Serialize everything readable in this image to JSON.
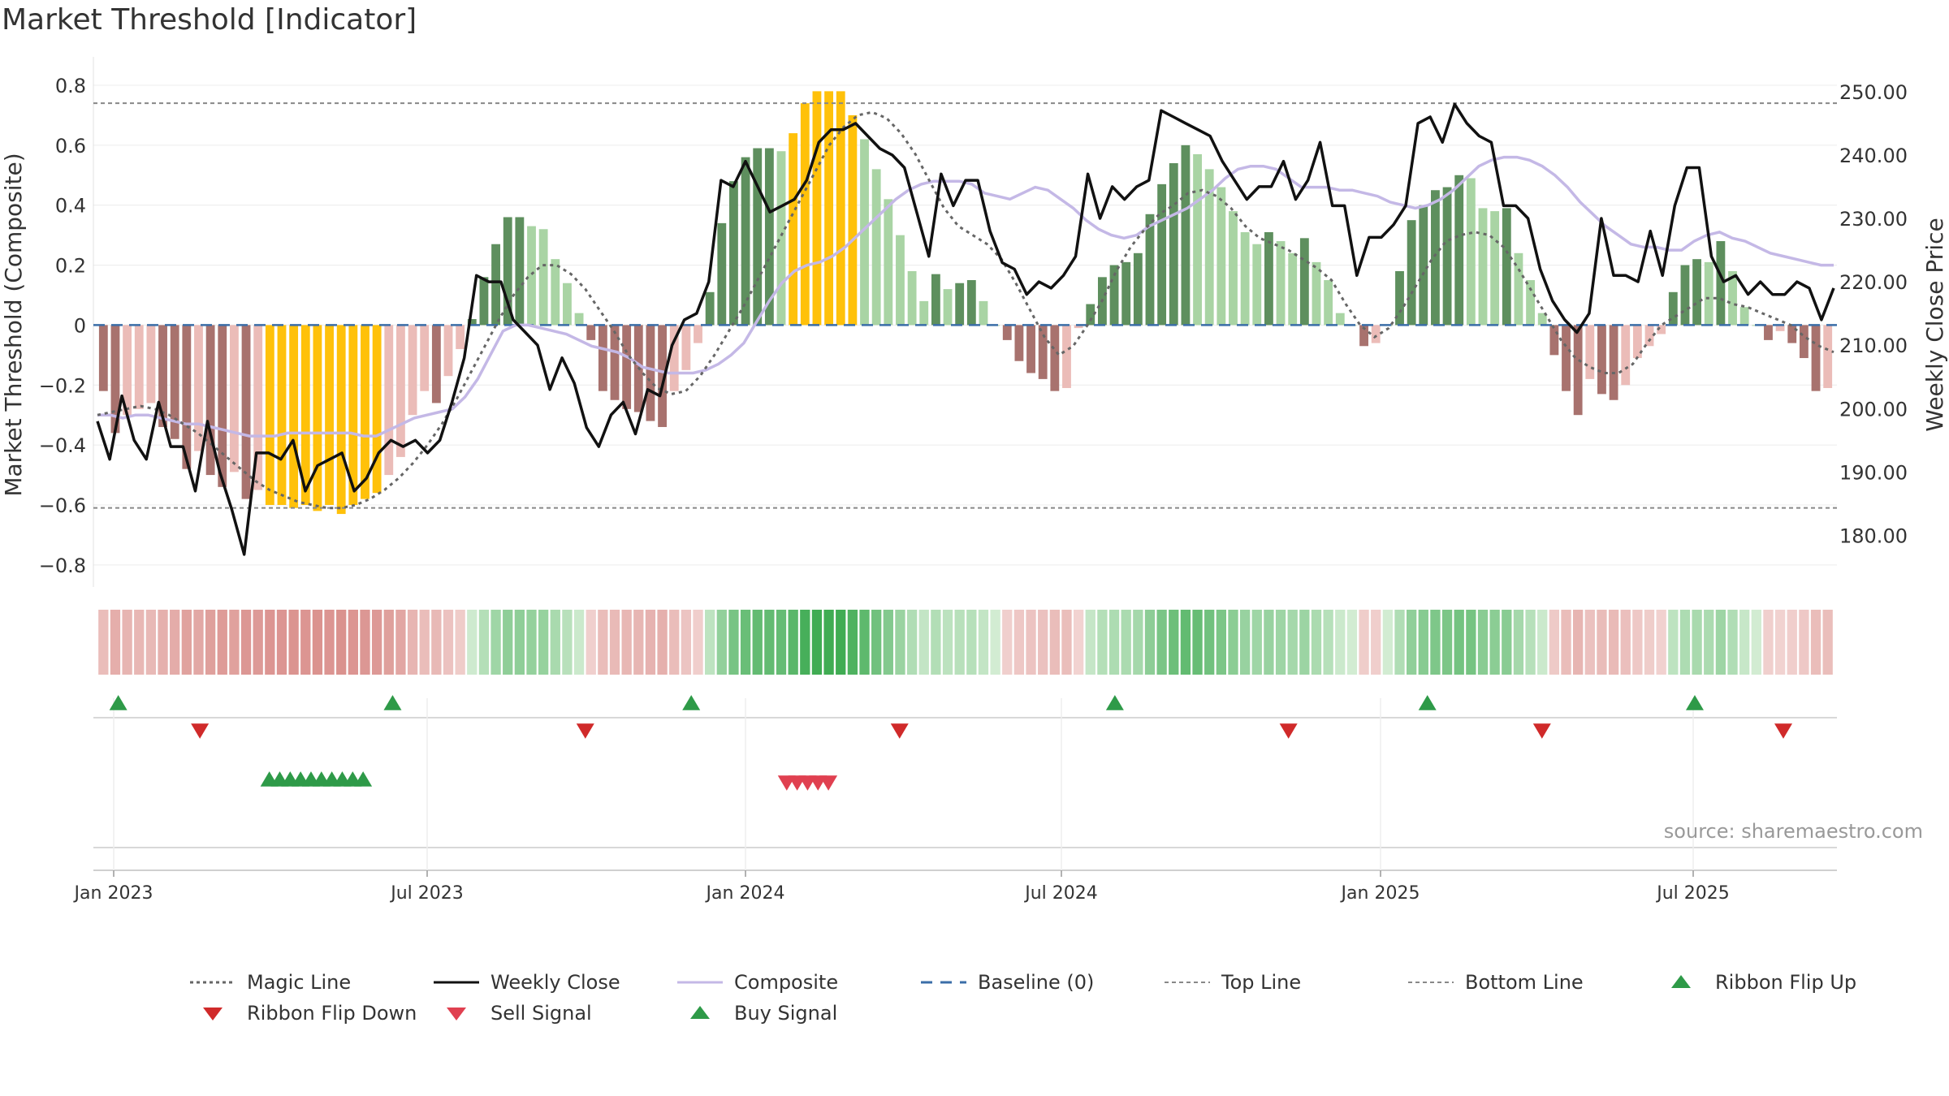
{
  "page": {
    "title": "Market Threshold [Indicator]",
    "source": "source: sharemaestro.com"
  },
  "chart_data": {
    "type": "bar",
    "title": "Market Threshold [Indicator]",
    "ylabel": "Market Threshold (Composite)",
    "y2label": "Weekly Close Price",
    "ylim": [
      -0.86,
      0.8
    ],
    "y2lim": [
      172.5,
      251.0
    ],
    "yticks": [
      "0.8",
      "0.6",
      "0.4",
      "0.2",
      "0",
      "−0.2",
      "−0.4",
      "−0.6",
      "−0.8"
    ],
    "y2ticks": [
      "250.00",
      "240.00",
      "230.00",
      "220.00",
      "210.00",
      "200.00",
      "190.00",
      "180.00"
    ],
    "xticks": [
      "Jan 2023",
      "Jul 2023",
      "Jan 2024",
      "Jul 2024",
      "Jan 2025",
      "Jul 2025"
    ],
    "top_line": 0.74,
    "bottom_line": -0.61,
    "composite_bars": [
      -0.22,
      -0.36,
      -0.3,
      -0.28,
      -0.26,
      -0.34,
      -0.38,
      -0.48,
      -0.42,
      -0.5,
      -0.54,
      -0.49,
      -0.58,
      -0.55,
      -0.6,
      -0.6,
      -0.61,
      -0.6,
      -0.62,
      -0.6,
      -0.63,
      -0.6,
      -0.58,
      -0.56,
      -0.5,
      -0.44,
      -0.3,
      -0.22,
      -0.26,
      -0.17,
      -0.08,
      0.02,
      0.16,
      0.27,
      0.36,
      0.36,
      0.33,
      0.32,
      0.22,
      0.14,
      0.04,
      -0.05,
      -0.22,
      -0.25,
      -0.28,
      -0.29,
      -0.32,
      -0.34,
      -0.22,
      -0.15,
      -0.06,
      0.11,
      0.34,
      0.48,
      0.56,
      0.59,
      0.59,
      0.58,
      0.64,
      0.74,
      0.78,
      0.78,
      0.78,
      0.7,
      0.62,
      0.52,
      0.42,
      0.3,
      0.18,
      0.08,
      0.17,
      0.12,
      0.14,
      0.15,
      0.08,
      0.0,
      -0.05,
      -0.12,
      -0.16,
      -0.18,
      -0.22,
      -0.21,
      -0.01,
      0.07,
      0.16,
      0.2,
      0.21,
      0.24,
      0.37,
      0.47,
      0.54,
      0.6,
      0.57,
      0.52,
      0.46,
      0.38,
      0.31,
      0.27,
      0.31,
      0.28,
      0.24,
      0.29,
      0.21,
      0.15,
      0.04,
      0.0,
      -0.07,
      -0.06,
      0.0,
      0.18,
      0.35,
      0.4,
      0.45,
      0.46,
      0.5,
      0.49,
      0.39,
      0.38,
      0.39,
      0.24,
      0.15,
      0.04,
      -0.1,
      -0.22,
      -0.3,
      -0.18,
      -0.23,
      -0.25,
      -0.2,
      -0.11,
      -0.07,
      -0.03,
      0.11,
      0.2,
      0.22,
      0.21,
      0.28,
      0.18,
      0.06,
      0.0,
      -0.05,
      -0.02,
      -0.06,
      -0.11,
      -0.22,
      -0.21
    ],
    "weekly_close": [
      198,
      192,
      202,
      195,
      192,
      201,
      194,
      194,
      187,
      198,
      190,
      184,
      177,
      193,
      193,
      192,
      195,
      187,
      191,
      192,
      193,
      187,
      189,
      193,
      195,
      194,
      195,
      193,
      195,
      201,
      208,
      221,
      220,
      220,
      214,
      212,
      210,
      203,
      208,
      204,
      197,
      194,
      199,
      201,
      196,
      203,
      202,
      210,
      214,
      215,
      220,
      236,
      235,
      239,
      235,
      231,
      232,
      233,
      236,
      242,
      244,
      244,
      245,
      243,
      241,
      240,
      238,
      231,
      224,
      237,
      232,
      236,
      236,
      228,
      223,
      222,
      218,
      220,
      219,
      221,
      224,
      237,
      230,
      235,
      233,
      235,
      236,
      247,
      246,
      245,
      244,
      243,
      239,
      236,
      233,
      235,
      235,
      239,
      233,
      236,
      242,
      232,
      232,
      221,
      227,
      227,
      229,
      232,
      245,
      246,
      242,
      248,
      245,
      243,
      242,
      232,
      232,
      230,
      222,
      217,
      214,
      212,
      215,
      230,
      221,
      221,
      220,
      228,
      221,
      232,
      238,
      238,
      224,
      220,
      221,
      218,
      220,
      218,
      218,
      220,
      219,
      214,
      219
    ],
    "composite_line": [
      -0.3,
      -0.3,
      -0.31,
      -0.3,
      -0.3,
      -0.31,
      -0.32,
      -0.33,
      -0.33,
      -0.34,
      -0.35,
      -0.36,
      -0.37,
      -0.37,
      -0.37,
      -0.36,
      -0.36,
      -0.36,
      -0.36,
      -0.36,
      -0.36,
      -0.37,
      -0.37,
      -0.35,
      -0.33,
      -0.31,
      -0.3,
      -0.29,
      -0.28,
      -0.24,
      -0.18,
      -0.1,
      -0.02,
      0.0,
      0.0,
      -0.01,
      -0.02,
      -0.03,
      -0.05,
      -0.07,
      -0.08,
      -0.09,
      -0.11,
      -0.14,
      -0.15,
      -0.16,
      -0.16,
      -0.16,
      -0.15,
      -0.13,
      -0.1,
      -0.06,
      0.01,
      0.08,
      0.14,
      0.18,
      0.2,
      0.21,
      0.23,
      0.26,
      0.3,
      0.34,
      0.38,
      0.42,
      0.45,
      0.47,
      0.48,
      0.48,
      0.48,
      0.47,
      0.44,
      0.43,
      0.42,
      0.44,
      0.46,
      0.45,
      0.42,
      0.39,
      0.35,
      0.32,
      0.3,
      0.29,
      0.3,
      0.33,
      0.35,
      0.37,
      0.39,
      0.42,
      0.45,
      0.49,
      0.52,
      0.53,
      0.53,
      0.52,
      0.49,
      0.46,
      0.46,
      0.46,
      0.45,
      0.45,
      0.44,
      0.43,
      0.41,
      0.4,
      0.39,
      0.4,
      0.42,
      0.45,
      0.49,
      0.53,
      0.55,
      0.56,
      0.56,
      0.55,
      0.53,
      0.5,
      0.46,
      0.41,
      0.37,
      0.33,
      0.3,
      0.27,
      0.26,
      0.26,
      0.25,
      0.25,
      0.28,
      0.3,
      0.31,
      0.29,
      0.28,
      0.26,
      0.24,
      0.23,
      0.22,
      0.21,
      0.2,
      0.2
    ],
    "magic_line": [
      -0.3,
      -0.29,
      -0.28,
      -0.27,
      -0.28,
      -0.3,
      -0.33,
      -0.36,
      -0.4,
      -0.44,
      -0.48,
      -0.52,
      -0.55,
      -0.57,
      -0.59,
      -0.6,
      -0.61,
      -0.61,
      -0.6,
      -0.58,
      -0.55,
      -0.51,
      -0.46,
      -0.4,
      -0.33,
      -0.25,
      -0.16,
      -0.07,
      0.02,
      0.1,
      0.16,
      0.2,
      0.2,
      0.17,
      0.12,
      0.05,
      -0.02,
      -0.1,
      -0.16,
      -0.21,
      -0.23,
      -0.22,
      -0.17,
      -0.1,
      -0.02,
      0.06,
      0.15,
      0.24,
      0.33,
      0.42,
      0.51,
      0.6,
      0.66,
      0.7,
      0.71,
      0.69,
      0.64,
      0.57,
      0.48,
      0.39,
      0.33,
      0.3,
      0.27,
      0.22,
      0.14,
      0.05,
      -0.04,
      -0.1,
      -0.07,
      0.0,
      0.08,
      0.18,
      0.26,
      0.32,
      0.37,
      0.4,
      0.44,
      0.45,
      0.43,
      0.39,
      0.33,
      0.29,
      0.27,
      0.25,
      0.22,
      0.19,
      0.15,
      0.07,
      0.0,
      -0.04,
      -0.01,
      0.06,
      0.14,
      0.22,
      0.28,
      0.3,
      0.31,
      0.3,
      0.26,
      0.19,
      0.11,
      0.03,
      -0.05,
      -0.11,
      -0.14,
      -0.16,
      -0.16,
      -0.13,
      -0.06,
      0.0,
      0.03,
      0.06,
      0.09,
      0.09,
      0.07,
      0.06,
      0.04,
      0.02,
      0.0,
      -0.04,
      -0.07,
      -0.09
    ],
    "ribbon_flip_up_x": [
      0.012,
      0.17,
      0.342,
      0.586,
      0.766,
      0.92
    ],
    "ribbon_flip_down_x": [
      0.059,
      0.281,
      0.462,
      0.686,
      0.832,
      0.971
    ],
    "buy_signal_x": [
      0.099,
      0.105,
      0.111,
      0.117,
      0.123,
      0.129,
      0.135,
      0.141,
      0.147,
      0.153
    ],
    "sell_signal_x": [
      0.397,
      0.403,
      0.409,
      0.415,
      0.421
    ],
    "legend": [
      {
        "label": "Magic Line",
        "kind": "dotted",
        "color": "#666666"
      },
      {
        "label": "Weekly Close",
        "kind": "solid",
        "color": "#111111"
      },
      {
        "label": "Composite",
        "kind": "solid",
        "color": "#c4b8e6"
      },
      {
        "label": "Baseline (0)",
        "kind": "dashed",
        "color": "#3b6ea8"
      },
      {
        "label": "Top Line",
        "kind": "dashed-fine",
        "color": "#888888"
      },
      {
        "label": "Bottom Line",
        "kind": "dashed-fine",
        "color": "#888888"
      },
      {
        "label": "Ribbon Flip Up",
        "kind": "tri-up",
        "color": "#2e9a48"
      },
      {
        "label": "Ribbon Flip Down",
        "kind": "tri-down",
        "color": "#d02a2a"
      },
      {
        "label": "Sell Signal",
        "kind": "tri-down",
        "color": "#e04050"
      },
      {
        "label": "Buy Signal",
        "kind": "tri-up",
        "color": "#2e9a48"
      }
    ],
    "colors": {
      "bar_pos_strong": "#5e8f5e",
      "bar_pos_light": "#a9d4a4",
      "bar_neg_strong": "#a8726e",
      "bar_neg_light": "#ebbcb8",
      "bar_extreme": "#ffc10a",
      "weekly_close": "#111111",
      "composite_line": "#c4b8e6",
      "magic_line": "#666666",
      "baseline": "#3b6ea8"
    }
  }
}
